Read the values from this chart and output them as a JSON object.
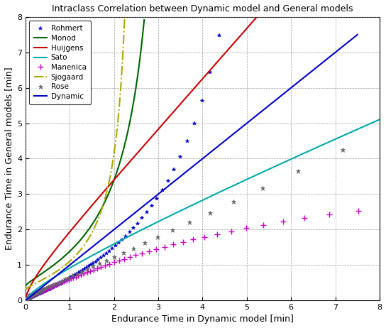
{
  "title": "Intraclass Correlation between Dynamic model and General models",
  "xlabel": "Endurance Time in Dynamic model [min]",
  "ylabel": "Endurance Time in General models [min]",
  "xlim": [
    0,
    8
  ],
  "ylim": [
    0,
    8
  ],
  "xticks": [
    0,
    1,
    2,
    3,
    4,
    5,
    6,
    7,
    8
  ],
  "yticks": [
    0,
    1,
    2,
    3,
    4,
    5,
    6,
    7,
    8
  ],
  "figsize": [
    5.44,
    4.62
  ],
  "dpi": 100,
  "background_color": "#ffffff",
  "colors": {
    "rohmert": "#0000cc",
    "monod": "#006600",
    "huijgens": "#cc0000",
    "sato": "#00aaaa",
    "manenica": "#cc00cc",
    "sjogaard": "#aaaa00",
    "rose": "#666666",
    "dynamic": "#0000cc"
  },
  "grid_color": "#888888",
  "grid_linestyle": "--",
  "grid_linewidth": 0.5
}
